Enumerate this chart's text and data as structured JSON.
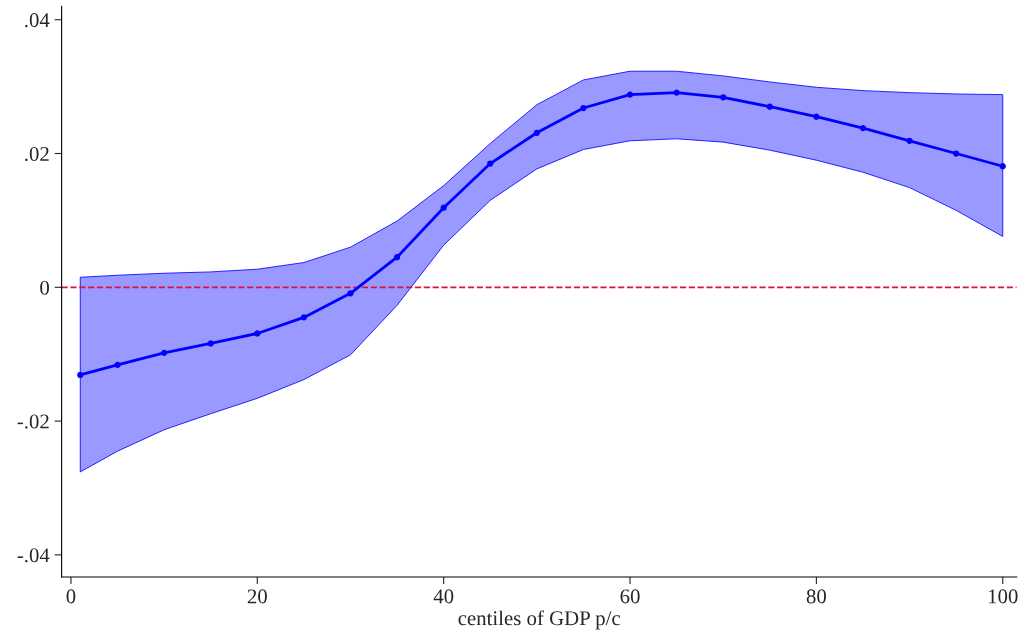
{
  "chart_data": {
    "type": "line",
    "xlabel": "centiles of GDP p/c",
    "x": [
      1,
      5,
      10,
      15,
      20,
      25,
      30,
      35,
      40,
      45,
      50,
      55,
      60,
      65,
      70,
      75,
      80,
      85,
      90,
      95,
      100
    ],
    "series": [
      {
        "color": "#0000ff",
        "values": [
          -0.0131,
          -0.0116,
          -0.0098,
          -0.0084,
          -0.0069,
          -0.0045,
          -0.0009,
          0.0045,
          0.0119,
          0.0185,
          0.0231,
          0.0268,
          0.0288,
          0.0291,
          0.0284,
          0.027,
          0.0255,
          0.0238,
          0.0219,
          0.02,
          0.0181
        ],
        "lower": [
          -0.0276,
          -0.0245,
          -0.0213,
          -0.0189,
          -0.0166,
          -0.0138,
          -0.0101,
          -0.0027,
          0.0063,
          0.013,
          0.0177,
          0.0206,
          0.0219,
          0.0222,
          0.0217,
          0.0205,
          0.019,
          0.0172,
          0.0149,
          0.0115,
          0.0076
        ],
        "upper": [
          0.0015,
          0.0018,
          0.0021,
          0.0023,
          0.0027,
          0.0037,
          0.006,
          0.0099,
          0.0152,
          0.0215,
          0.0273,
          0.031,
          0.0323,
          0.0323,
          0.0316,
          0.0307,
          0.0299,
          0.0294,
          0.0291,
          0.0289,
          0.0288
        ]
      }
    ],
    "ref_lines": [
      {
        "axis": "y",
        "value": 0,
        "color": "#dc143c",
        "line_style": "dashed"
      }
    ],
    "marker": "circle",
    "line_style": "solid",
    "grid": false,
    "legend": false,
    "xlim": [
      -1,
      101.5
    ],
    "xticks": [
      0,
      20,
      40,
      60,
      80,
      100
    ],
    "ylim": [
      -0.0433,
      0.042
    ],
    "yticks": [
      {
        "value": -0.04,
        "label": "-.04"
      },
      {
        "value": -0.02,
        "label": "-.02"
      },
      {
        "value": 0,
        "label": "0"
      },
      {
        "value": 0.02,
        "label": ".02"
      },
      {
        "value": 0.04,
        "label": ".04"
      }
    ]
  }
}
